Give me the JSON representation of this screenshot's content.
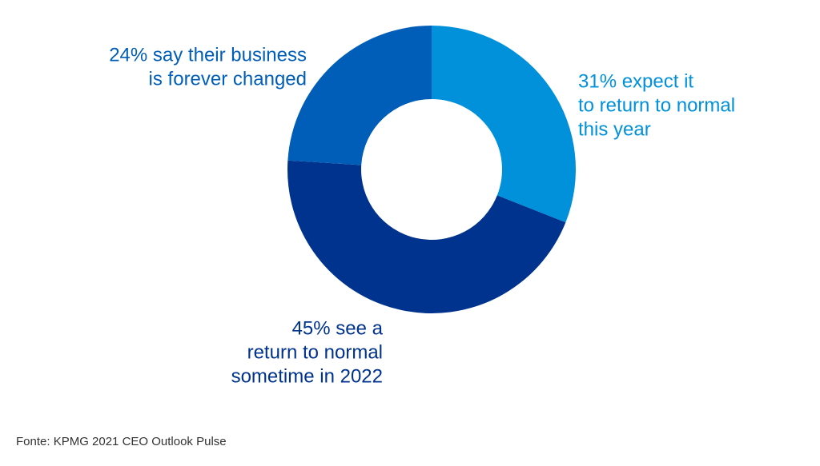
{
  "chart_data": {
    "type": "donut",
    "categories": [
      [
        "31% expect it",
        "to return to normal",
        "this year"
      ],
      [
        "45% see a",
        "return to normal",
        "sometime in 2022"
      ],
      [
        "24% say their business",
        "is forever changed"
      ]
    ],
    "values": [
      31,
      45,
      24
    ],
    "colors": [
      "#0091da",
      "#00338d",
      "#005eb8"
    ],
    "source": "Fonte: KPMG 2021 CEO Outlook Pulse"
  }
}
